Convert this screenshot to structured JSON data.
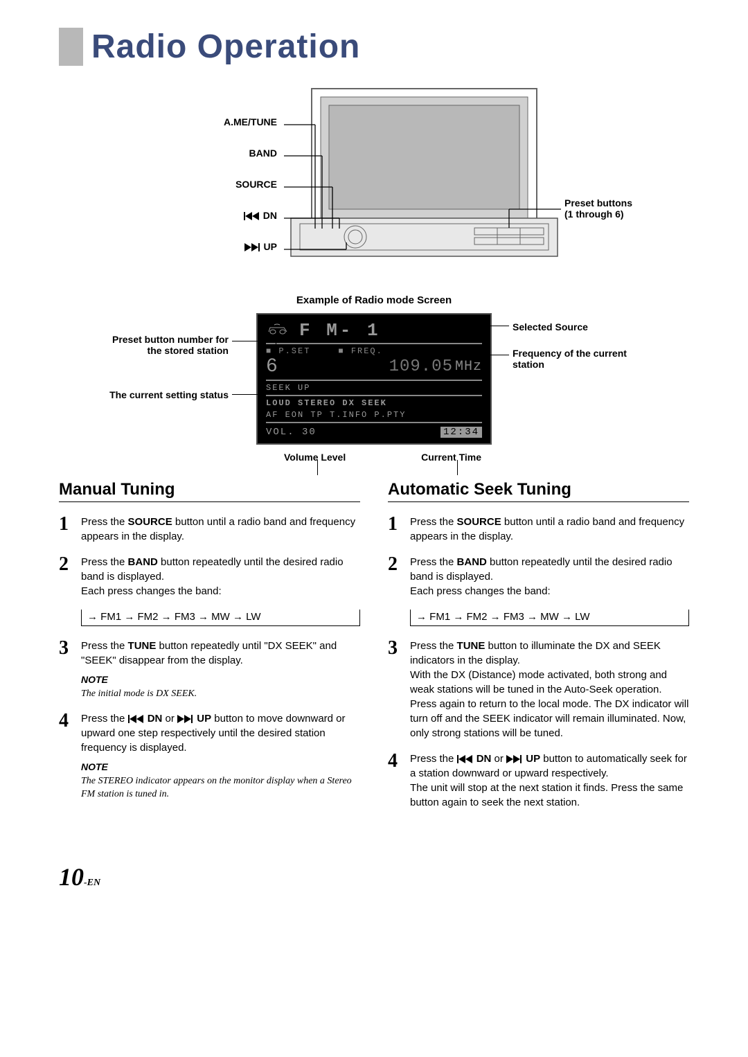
{
  "page": {
    "title": "Radio Operation",
    "page_number": "10",
    "page_suffix": "-EN"
  },
  "device_labels": {
    "left": [
      "A.ME/TUNE",
      "BAND",
      "SOURCE",
      "DN",
      "UP"
    ],
    "right": "Preset buttons\n(1 through 6)"
  },
  "example_title": "Example of Radio mode Screen",
  "screen_callouts": {
    "preset_button": "Preset button number for the stored station",
    "setting_status": "The current setting status",
    "selected_source": "Selected Source",
    "frequency": "Frequency of the current station",
    "volume_level": "Volume Level",
    "current_time": "Current Time"
  },
  "radio_screen": {
    "source": "F M- 1",
    "pset_label": "P.SET",
    "freq_label": "FREQ.",
    "preset_num": "6",
    "freq_value": "109.05",
    "freq_unit": "MHz",
    "seek_label": "SEEK  UP",
    "indicators_row1": "LOUD   STEREO    DX  SEEK",
    "indicators_row2": "AF   EON  TP  T.INFO   P.PTY",
    "vol_label": "VOL.  30",
    "time": "12:34"
  },
  "manual_tuning": {
    "title": "Manual Tuning",
    "steps": {
      "1": "Press the <b>SOURCE</b> button until a radio band and frequency appears in the display.",
      "2": "Press the <b>BAND</b> button repeatedly until the desired radio band is displayed.<br>Each press changes the band:",
      "band_cycle": "→ FM1 → FM2 → FM3 → MW → LW",
      "3": "Press the <b>TUNE</b> button repeatedly until \"DX SEEK\" and \"SEEK\" disappear from the display.",
      "note3_label": "NOTE",
      "note3_text": "The initial mode is DX SEEK.",
      "4": "Press the <svg class=\"skip-icon\" width=\"24\" height=\"12\"><polygon points=\"0,0 0,12 2,12 2,0\" fill=\"#000\"/><polygon points=\"12,0 2,6 12,12\" fill=\"#000\"/><polygon points=\"22,0 12,6 22,12\" fill=\"#000\"/></svg> <b>DN</b> or <svg class=\"skip-icon\" width=\"24\" height=\"12\"><polygon points=\"0,0 10,6 0,12\" fill=\"#000\"/><polygon points=\"10,0 20,6 10,12\" fill=\"#000\"/><polygon points=\"20,0 22,0 22,12 20,12\" fill=\"#000\"/></svg> <b>UP</b> button to move downward or upward one step respectively until the desired station frequency is displayed.",
      "note4_label": "NOTE",
      "note4_text": "The STEREO indicator appears on the monitor display when a Stereo FM station is tuned in."
    }
  },
  "auto_tuning": {
    "title": "Automatic Seek Tuning",
    "steps": {
      "1": "Press the <b>SOURCE</b> button until a radio band and frequency appears in the display.",
      "2": "Press the <b>BAND</b> button repeatedly until the desired radio band is displayed.<br>Each press changes the band:",
      "band_cycle": "→ FM1 → FM2 → FM3 → MW → LW",
      "3": "Press the <b>TUNE</b> button to illuminate the DX and SEEK indicators in the display.<br>With the DX (Distance) mode activated, both strong and weak stations will be tuned in the Auto-Seek operation.<br>Press again to return to the local mode. The DX indicator will turn off and the SEEK indicator will remain illuminated. Now, only strong stations will be tuned.",
      "4": "Press the <svg class=\"skip-icon\" width=\"24\" height=\"12\"><polygon points=\"0,0 0,12 2,12 2,0\" fill=\"#000\"/><polygon points=\"12,0 2,6 12,12\" fill=\"#000\"/><polygon points=\"22,0 12,6 22,12\" fill=\"#000\"/></svg> <b>DN</b> or <svg class=\"skip-icon\" width=\"24\" height=\"12\"><polygon points=\"0,0 10,6 0,12\" fill=\"#000\"/><polygon points=\"10,0 20,6 10,12\" fill=\"#000\"/><polygon points=\"20,0 22,0 22,12 20,12\" fill=\"#000\"/></svg> <b>UP</b> button to automatically seek for  a station downward or upward respectively.<br>The unit will stop at the next station it finds. Press the same button again to seek the next station."
    }
  }
}
